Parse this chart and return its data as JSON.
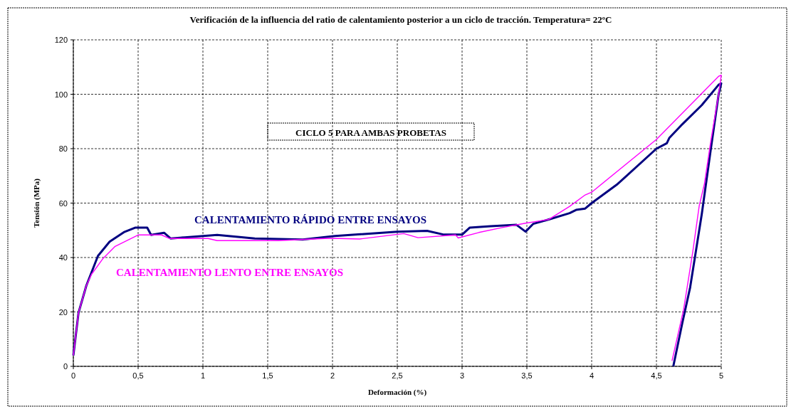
{
  "chart_data": {
    "type": "line",
    "title": "Verificación de la influencia del ratio de calentamiento posterior a un ciclo de tracción. Temperatura= 22ºC",
    "xlabel": "Deformación (%)",
    "ylabel": "Tensión (MPa)",
    "xlim": [
      0,
      5
    ],
    "xticks": [
      0,
      {
        "value": 0.5,
        "label": "0,5"
      },
      1,
      {
        "value": 1.5,
        "label": "1,5"
      },
      2,
      {
        "value": 2.5,
        "label": "2,5"
      },
      3,
      {
        "value": 3.5,
        "label": "3,5"
      },
      4,
      {
        "value": 4.5,
        "label": "4,5"
      },
      5
    ],
    "ylim": [
      0,
      120
    ],
    "yticks": [
      0,
      20,
      40,
      60,
      80,
      100,
      120
    ],
    "grid": true,
    "line_style": "solid",
    "marker": "none",
    "annotations": [
      "CICLO 5 PARA AMBAS PROBETAS"
    ],
    "series": [
      {
        "name": "CALENTAMIENTO RÁPIDO ENTRE ENSAYOS",
        "color": "#000080",
        "x": [
          0,
          0.04,
          0.1,
          0.19,
          0.28,
          0.39,
          0.48,
          0.57,
          0.6,
          0.7,
          0.75,
          0.86,
          1.11,
          1.4,
          1.77,
          2.02,
          2.5,
          2.73,
          2.86,
          3,
          3.06,
          3.22,
          3.42,
          3.49,
          3.55,
          3.67,
          3.83,
          3.88,
          3.95,
          4,
          4.2,
          4.5,
          4.58,
          4.6,
          4.7,
          4.85,
          4.98,
          5,
          4.98,
          4.92,
          4.85,
          4.76,
          4.7,
          4.63
        ],
        "values": [
          4,
          19.7,
          29.6,
          40.6,
          45.8,
          49.3,
          51,
          51,
          48.3,
          49.1,
          47,
          47.4,
          48.3,
          47,
          46.6,
          47.9,
          49.5,
          49.8,
          48.4,
          48.4,
          51,
          51.5,
          52,
          49.5,
          52.4,
          54,
          56.3,
          57.5,
          58,
          60,
          67,
          80,
          82,
          84,
          89,
          96,
          103.5,
          104,
          100,
          80,
          56,
          29,
          16,
          0
        ]
      },
      {
        "name": "CALENTAMIENTO LENTO ENTRE ENSAYOS",
        "color": "#ff00ff",
        "x": [
          0,
          0.04,
          0.1,
          0.14,
          0.23,
          0.32,
          0.5,
          0.68,
          0.74,
          1.04,
          1.11,
          1.58,
          1.94,
          2.05,
          2.21,
          2.55,
          2.66,
          2.95,
          2.97,
          3.13,
          3.31,
          3.49,
          3.67,
          3.83,
          3.95,
          4,
          4.5,
          4.98,
          5,
          4.98,
          4.92,
          4.87,
          4.83,
          4.78,
          4.71,
          4.62
        ],
        "values": [
          4,
          19.7,
          29.6,
          33.8,
          39.7,
          44,
          48.3,
          48.3,
          47,
          47,
          46.2,
          46.2,
          47,
          47,
          46.8,
          48.8,
          47.3,
          48.3,
          47.2,
          49.2,
          51,
          52.6,
          54,
          58.8,
          63,
          64,
          83.4,
          106.6,
          107,
          100,
          83,
          67,
          59,
          42,
          21,
          2
        ]
      }
    ]
  }
}
